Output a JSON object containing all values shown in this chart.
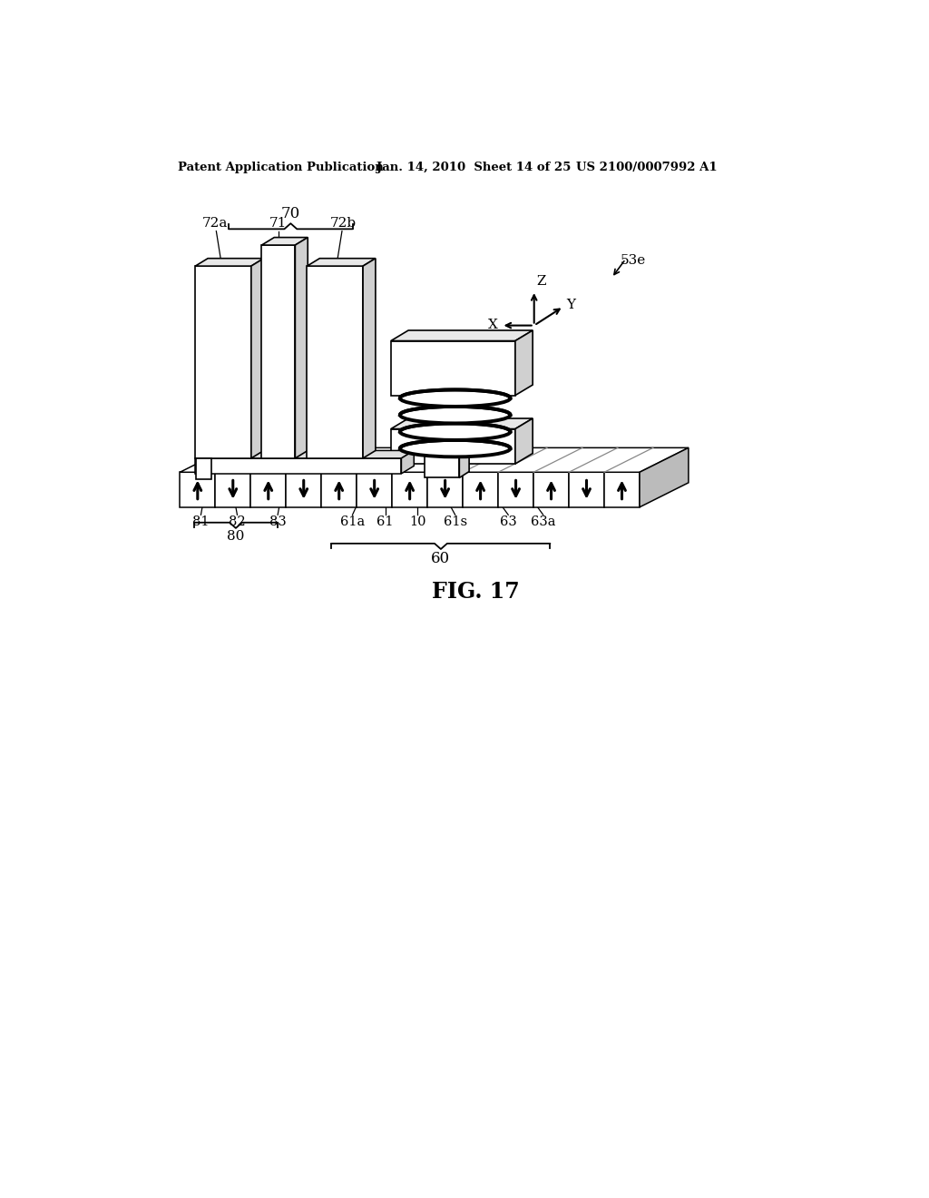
{
  "title_left": "Patent Application Publication",
  "title_mid": "Jan. 14, 2010  Sheet 14 of 25",
  "title_right": "US 2100/0007992 A1",
  "fig_label": "FIG. 17",
  "ref_53e": "53e",
  "ref_70": "70",
  "ref_71": "71",
  "ref_72a": "72a",
  "ref_72b": "72b",
  "ref_80": "80",
  "ref_81": "81",
  "ref_82": "82",
  "ref_83": "83",
  "ref_60": "60",
  "ref_61": "61",
  "ref_61a": "61a",
  "ref_61s": "61s",
  "ref_63": "63",
  "ref_63a": "63a",
  "ref_10": "10",
  "bg_color": "#ffffff",
  "line_color": "#000000"
}
